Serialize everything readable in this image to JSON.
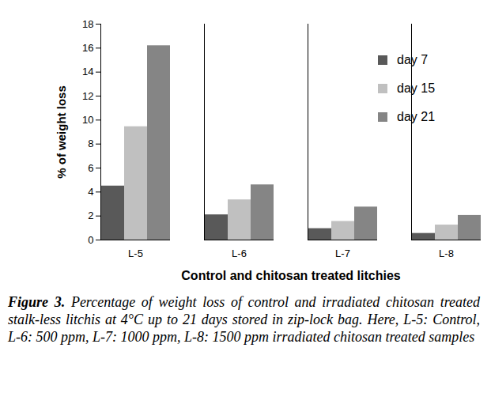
{
  "chart_data": {
    "type": "bar",
    "categories": [
      "L-5",
      "L-6",
      "L-7",
      "L-8"
    ],
    "series": [
      {
        "name": "day 7",
        "color": "#595959",
        "values": [
          4.5,
          2.1,
          0.95,
          0.55
        ]
      },
      {
        "name": "day 15",
        "color": "#c0c0c0",
        "values": [
          9.45,
          3.35,
          1.55,
          1.25
        ]
      },
      {
        "name": "day 21",
        "color": "#858585",
        "values": [
          16.2,
          4.6,
          2.75,
          2.05
        ]
      }
    ],
    "x_label": "Control and chitosan treated litchies",
    "y_label": "% of weight loss",
    "ylim": [
      0,
      18
    ],
    "yticks": [
      0,
      2,
      4,
      6,
      8,
      10,
      12,
      14,
      16,
      18
    ],
    "legend": "top-right",
    "grid": false,
    "caption_label": "Figure 3.",
    "caption": "Percentage of weight loss of control and irradiated chitosan treated stalk-less litchis at 4°C up to 21 days stored in zip-lock bag. Here, L-5: Control, L-6: 500 ppm, L-7: 1000 ppm, L-8: 1500 ppm irradiated chitosan treated samples"
  }
}
